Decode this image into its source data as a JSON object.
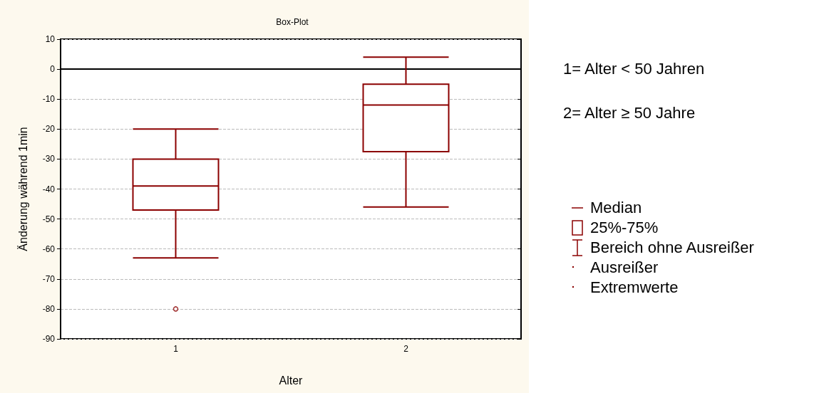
{
  "chart_data": {
    "type": "box",
    "title": "Box-Plot",
    "xlabel": "Alter",
    "ylabel": "Änderung während 1min",
    "categories": [
      "1",
      "2"
    ],
    "series": [
      {
        "color": "#8b0000",
        "boxes": [
          {
            "low": -63,
            "q1": -47,
            "median": -39,
            "q3": -30,
            "high": -20,
            "outliers": [
              -80
            ]
          },
          {
            "low": -46,
            "q1": -27.5,
            "median": -12,
            "q3": -5,
            "high": 4
          }
        ]
      }
    ],
    "ylim": [
      -90,
      10
    ],
    "yticks": [
      -90,
      -80,
      -70,
      -60,
      -50,
      -40,
      -30,
      -20,
      -10,
      0,
      10
    ],
    "grid": "y",
    "annotations": [
      "1= Alter < 50 Jahren",
      "2= Alter ≥ 50 Jahre",
      "Median",
      "25%-75%",
      "Bereich ohne Ausreißer",
      "Ausreißer",
      "Extremwerte"
    ]
  }
}
